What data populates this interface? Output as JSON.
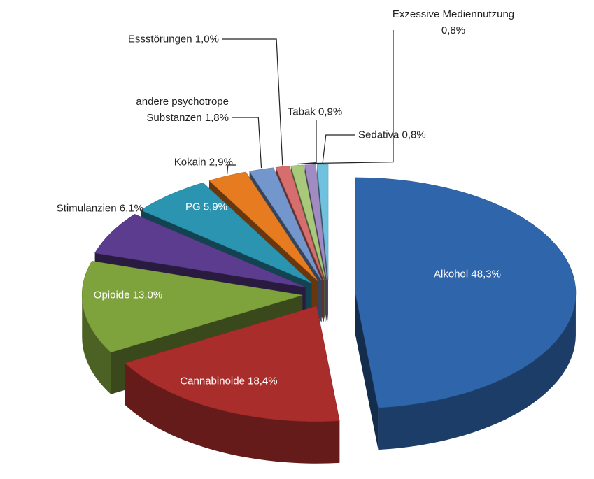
{
  "chart_data": {
    "type": "pie",
    "categories": [
      "Alkohol",
      "Cannabinoide",
      "Opioide",
      "Stimulanzien",
      "PG",
      "Kokain",
      "andere psychotrope Substanzen",
      "Essstörungen",
      "Tabak",
      "Exzessive Mediennutzung",
      "Sedativa"
    ],
    "values": [
      48.3,
      18.4,
      13.0,
      6.1,
      5.9,
      2.9,
      1.8,
      1.0,
      0.9,
      0.8,
      0.8
    ],
    "value_labels": [
      "48,3%",
      "18,4%",
      "13,0%",
      "6,1%",
      "5,9%",
      "2,9%",
      "1,8%",
      "1,0%",
      "0,9%",
      "0,8%",
      "0,8%"
    ],
    "colors": [
      "#2f65ab",
      "#a92d2b",
      "#7fa33c",
      "#5c3c8e",
      "#2a94b1",
      "#e67b20",
      "#7397cd",
      "#d56e6c",
      "#a9c97a",
      "#a08cc2",
      "#70c1dd"
    ]
  }
}
